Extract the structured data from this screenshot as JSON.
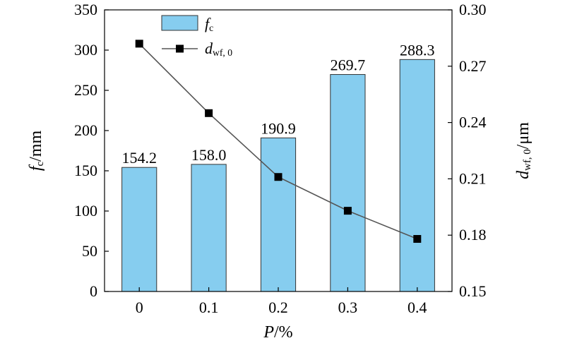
{
  "chart_data": {
    "type": "bar",
    "categories": [
      "0",
      "0.1",
      "0.2",
      "0.3",
      "0.4"
    ],
    "xlabel": {
      "main": "P",
      "unit": "/%"
    },
    "ylabel_left": {
      "main": "f",
      "sub": "c",
      "unit": "/mm"
    },
    "ylabel_right": {
      "main": "d",
      "sub": "wf, 0",
      "unit": "/μm"
    },
    "ylim_left": [
      0,
      350
    ],
    "yticks_left": [
      "0",
      "50",
      "100",
      "150",
      "200",
      "250",
      "300",
      "350"
    ],
    "ylim_right": [
      0.15,
      0.3
    ],
    "yticks_right": [
      "0.15",
      "0.18",
      "0.21",
      "0.24",
      "0.27",
      "0.30"
    ],
    "series": [
      {
        "name": {
          "main": "f",
          "sub": "c"
        },
        "kind": "bar",
        "axis": "left",
        "color": "#86cdef",
        "values": [
          154.2,
          158.0,
          190.9,
          269.7,
          288.3
        ],
        "labels": [
          "154.2",
          "158.0",
          "190.9",
          "269.7",
          "288.3"
        ]
      },
      {
        "name": {
          "main": "d",
          "sub": "wf, 0"
        },
        "kind": "line",
        "axis": "right",
        "color": "#000000",
        "line_color": "#555555",
        "marker": "square",
        "values": [
          0.282,
          0.245,
          0.211,
          0.193,
          0.178
        ]
      }
    ],
    "legend_position": "top-left",
    "grid": false
  }
}
